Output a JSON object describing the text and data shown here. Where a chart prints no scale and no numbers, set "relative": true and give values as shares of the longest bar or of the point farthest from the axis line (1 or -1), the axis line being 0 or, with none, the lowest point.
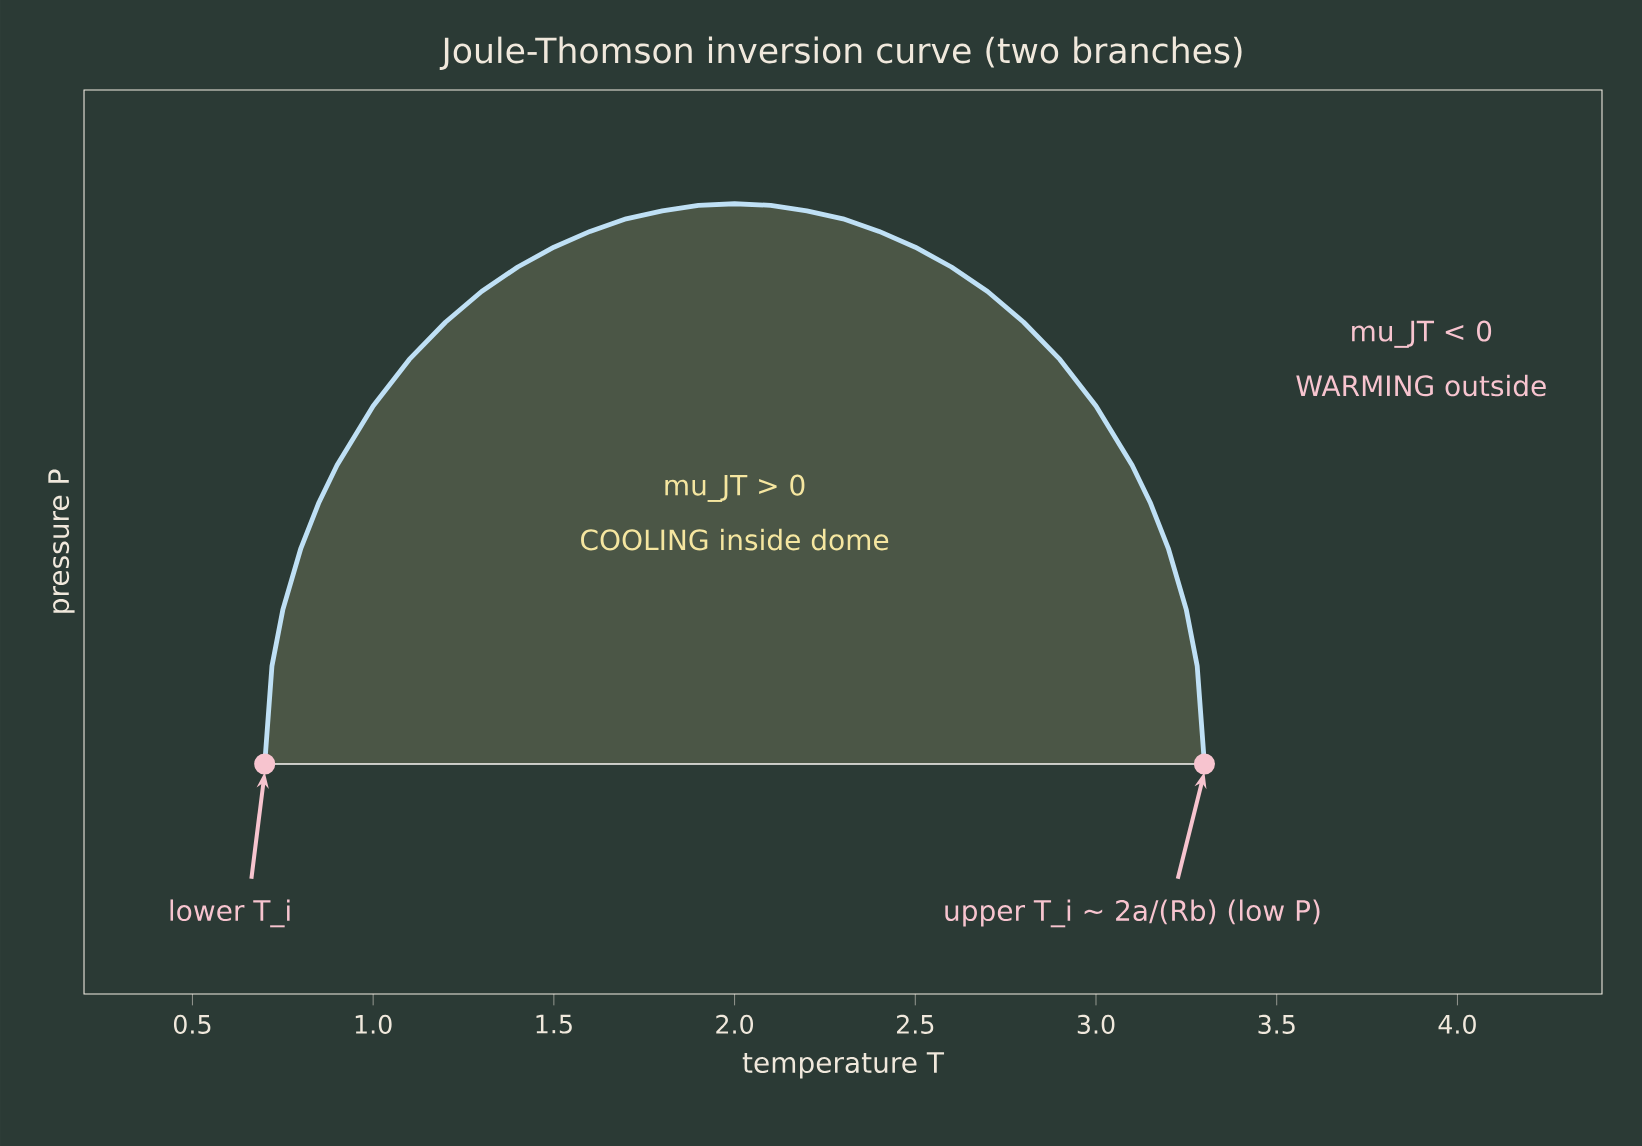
{
  "chart_data": {
    "type": "area",
    "title": "Joule-Thomson inversion curve (two branches)",
    "xlabel": "temperature T",
    "ylabel": "pressure P",
    "relative": true,
    "xlim": [
      0.2,
      4.4
    ],
    "xticks": [
      0.5,
      {
        "value": 1.0,
        "label": "1.0"
      },
      1.5,
      {
        "value": 2.0,
        "label": "2.0"
      },
      2.5,
      {
        "value": 3.0,
        "label": "3.0"
      },
      3.5,
      {
        "value": 4.0,
        "label": "4.0"
      }
    ],
    "series": [
      {
        "color": "#bfe0f5",
        "x": [
          0.7,
          0.72,
          0.75,
          0.8,
          0.85,
          0.9,
          1.0,
          1.1,
          1.2,
          1.3,
          1.4,
          1.5,
          1.6,
          1.7,
          1.8,
          1.9,
          2.0,
          2.1,
          2.2,
          2.3,
          2.4,
          2.5,
          2.6,
          2.7,
          2.8,
          2.9,
          3.0,
          3.1,
          3.15,
          3.2,
          3.25,
          3.28,
          3.3
        ],
        "values": [
          0.291,
          0.415,
          0.486,
          0.564,
          0.622,
          0.669,
          0.744,
          0.803,
          0.85,
          0.889,
          0.92,
          0.945,
          0.965,
          0.981,
          0.991,
          0.998,
          1.0,
          0.998,
          0.991,
          0.981,
          0.965,
          0.945,
          0.92,
          0.889,
          0.85,
          0.803,
          0.744,
          0.669,
          0.622,
          0.564,
          0.486,
          0.415,
          0.291
        ]
      },
      {
        "type": "scatter",
        "color": "#f7c4cf",
        "x": [
          0.7,
          3.3
        ],
        "values": [
          0.291,
          0.291
        ]
      }
    ],
    "annotations": [
      {
        "text": "lower T_i",
        "x": 0.7,
        "y": 0.291
      },
      {
        "text": "upper T_i ~ 2a/(Rb)  (low P)",
        "x": 3.3,
        "y": 0.291
      },
      "mu_JT > 0",
      "COOLING inside dome",
      "mu_JT < 0",
      "WARMING outside"
    ]
  }
}
